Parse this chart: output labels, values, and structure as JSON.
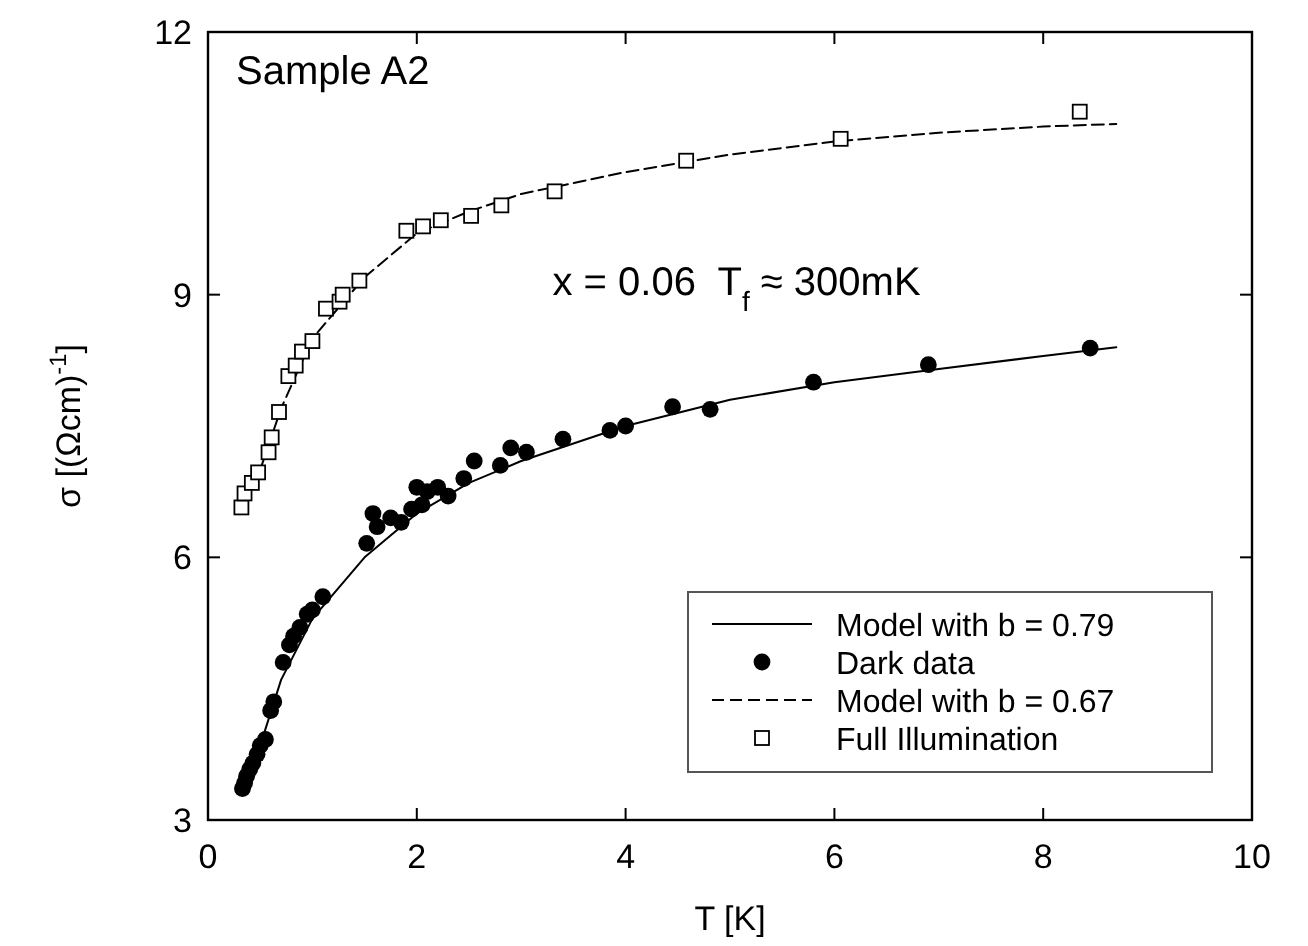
{
  "chart_data": {
    "type": "scatter",
    "xlabel": "T [K]",
    "ylabel": "σ [(Ωcm)$^{-1}$]",
    "xlim": [
      0,
      10
    ],
    "ylim": [
      3,
      12
    ],
    "xticks": [
      0,
      2,
      4,
      6,
      8,
      10
    ],
    "yticks": [
      3,
      6,
      9,
      12
    ],
    "grid": false,
    "legend": "bottom right",
    "annotations": [
      "Sample A2",
      "x = 0.06  T$_{f}$ ≈ 300mK"
    ],
    "series": [
      {
        "name": "Model with b = 0.79",
        "type": "line",
        "line_style": "solid",
        "marker": "none",
        "color": "#000000",
        "x": [
          0.3,
          0.5,
          0.7,
          1.0,
          1.5,
          2.0,
          2.5,
          3,
          4,
          5,
          6,
          7,
          8,
          8.7
        ],
        "values": [
          3.3,
          3.85,
          4.6,
          5.3,
          6.0,
          6.5,
          6.85,
          7.1,
          7.5,
          7.8,
          8.0,
          8.15,
          8.3,
          8.4
        ]
      },
      {
        "name": "Dark data",
        "marker": "circle",
        "color": "#000000",
        "x": [
          0.33,
          0.35,
          0.37,
          0.4,
          0.43,
          0.47,
          0.5,
          0.55,
          0.6,
          0.63,
          0.72,
          0.78,
          0.82,
          0.88,
          0.95,
          1.0,
          1.1,
          1.52,
          1.58,
          1.62,
          1.75,
          1.85,
          1.95,
          2.0,
          2.05,
          2.1,
          2.2,
          2.3,
          2.45,
          2.55,
          2.8,
          2.9,
          3.05,
          3.4,
          3.85,
          4.0,
          4.45,
          4.81,
          5.8,
          6.9,
          8.45
        ],
        "values": [
          3.36,
          3.42,
          3.5,
          3.58,
          3.65,
          3.75,
          3.85,
          3.92,
          4.25,
          4.35,
          4.8,
          5.0,
          5.1,
          5.2,
          5.35,
          5.4,
          5.55,
          6.16,
          6.5,
          6.35,
          6.45,
          6.4,
          6.55,
          6.8,
          6.6,
          6.75,
          6.8,
          6.7,
          6.9,
          7.1,
          7.05,
          7.25,
          7.2,
          7.35,
          7.45,
          7.5,
          7.72,
          7.69,
          8.0,
          8.2,
          8.39
        ]
      },
      {
        "name": "Model with b = 0.67",
        "type": "line",
        "line_style": "dashed",
        "marker": "none",
        "color": "#000000",
        "x": [
          0.3,
          0.5,
          0.7,
          1.0,
          1.5,
          2.0,
          2.5,
          3,
          4,
          5,
          6,
          7,
          8,
          8.7
        ],
        "values": [
          6.5,
          7.0,
          7.7,
          8.5,
          9.2,
          9.7,
          9.95,
          10.15,
          10.4,
          10.6,
          10.75,
          10.85,
          10.92,
          10.95
        ]
      },
      {
        "name": "Full Illumination",
        "marker": "square",
        "color": "#000000",
        "x": [
          0.32,
          0.35,
          0.42,
          0.48,
          0.58,
          0.61,
          0.68,
          0.77,
          0.84,
          0.9,
          1.0,
          1.13,
          1.26,
          1.29,
          1.45,
          1.9,
          2.06,
          2.23,
          2.52,
          2.81,
          3.32,
          4.58,
          6.06,
          8.35
        ],
        "values": [
          6.57,
          6.73,
          6.85,
          6.97,
          7.2,
          7.37,
          7.66,
          8.07,
          8.19,
          8.35,
          8.47,
          8.84,
          8.92,
          9.0,
          9.16,
          9.73,
          9.78,
          9.85,
          9.9,
          10.02,
          10.18,
          10.53,
          10.78,
          11.09
        ]
      }
    ]
  }
}
